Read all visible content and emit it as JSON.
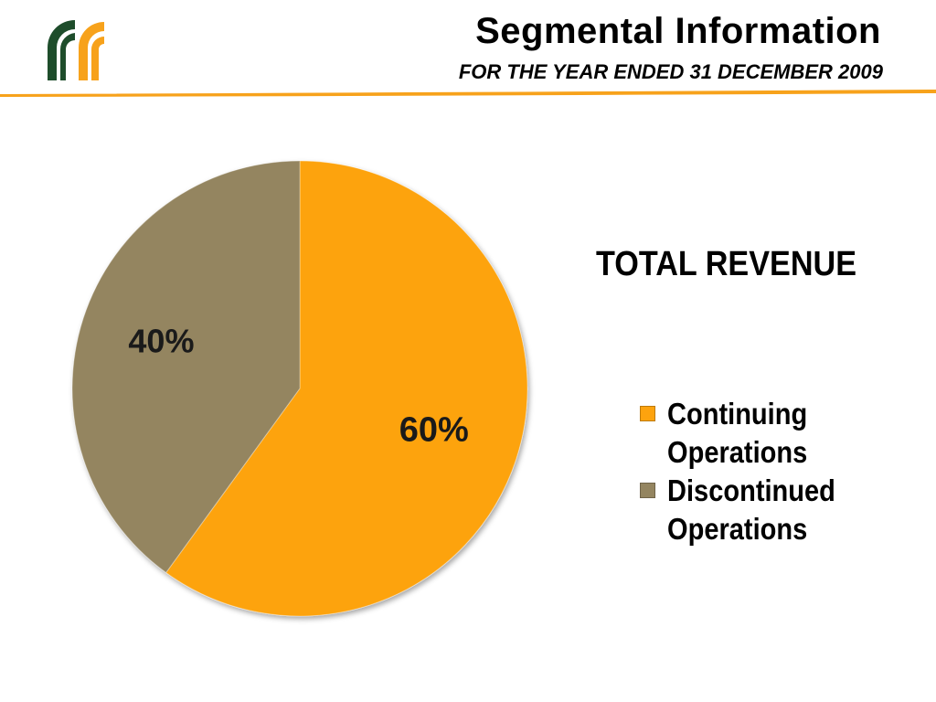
{
  "header": {
    "title": "Segmental Information",
    "subtitle": "FOR THE YEAR ENDED 31 DECEMBER 2009"
  },
  "colors": {
    "accent_rule": "#F7A21B",
    "logo_green": "#1E4D2B",
    "logo_orange": "#F7A21B"
  },
  "chart_data": {
    "type": "pie",
    "title": "TOTAL REVENUE",
    "categories": [
      "Continuing Operations",
      "Discontinued Operations"
    ],
    "values": [
      60,
      40
    ],
    "data_labels": [
      "60%",
      "40%"
    ],
    "colors": [
      "#FDA30E",
      "#948560"
    ],
    "legend_position": "right",
    "start_angle_deg": 0,
    "direction": "clockwise"
  }
}
